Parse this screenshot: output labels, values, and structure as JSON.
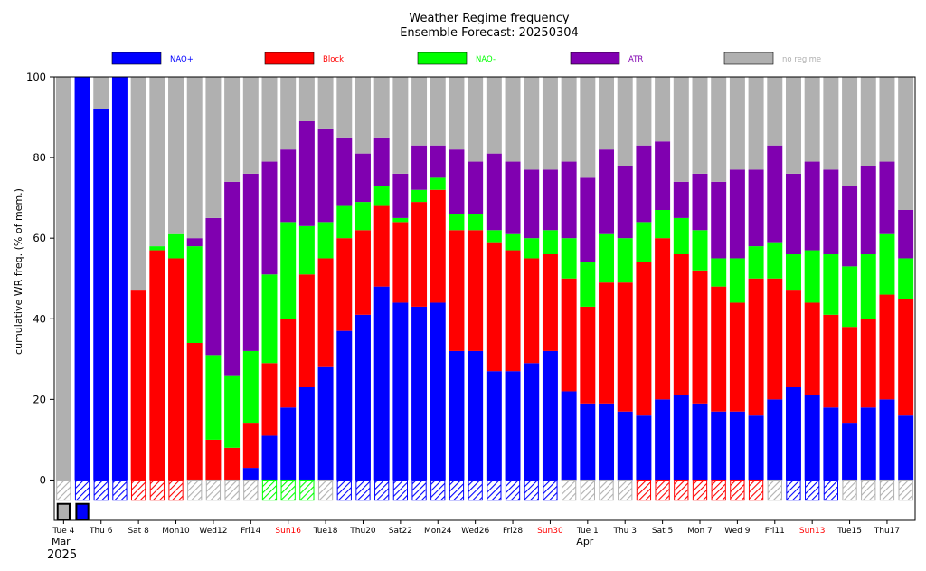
{
  "chart_data": {
    "type": "bar",
    "stacked": true,
    "title": "Weather Regime frequency",
    "subtitle": "Ensemble Forecast: 20250304",
    "ylabel": "cumulative WR freq. (% of mem.)",
    "xlabel": "",
    "ylim": [
      -10,
      100
    ],
    "yticks": [
      0,
      20,
      40,
      60,
      80,
      100
    ],
    "legend": [
      {
        "name": "NAO+",
        "color": "#0000ff",
        "text_color": "#0000ff"
      },
      {
        "name": "Block",
        "color": "#ff0000",
        "text_color": "#ff0000"
      },
      {
        "name": "NAO-",
        "color": "#00ff00",
        "text_color": "#00ff00"
      },
      {
        "name": "ATR",
        "color": "#8000b0",
        "text_color": "#8000b0"
      },
      {
        "name": "no regime",
        "color": "#b0b0b0",
        "text_color": "#b0b0b0"
      }
    ],
    "x_tick_labels": [
      {
        "index": 0,
        "label": "Tue 4",
        "color": "#000000"
      },
      {
        "index": 2,
        "label": "Thu 6",
        "color": "#000000"
      },
      {
        "index": 4,
        "label": "Sat 8",
        "color": "#000000"
      },
      {
        "index": 6,
        "label": "Mon10",
        "color": "#000000"
      },
      {
        "index": 8,
        "label": "Wed12",
        "color": "#000000"
      },
      {
        "index": 10,
        "label": "Fri14",
        "color": "#000000"
      },
      {
        "index": 12,
        "label": "Sun16",
        "color": "#ff0000"
      },
      {
        "index": 14,
        "label": "Tue18",
        "color": "#000000"
      },
      {
        "index": 16,
        "label": "Thu20",
        "color": "#000000"
      },
      {
        "index": 18,
        "label": "Sat22",
        "color": "#000000"
      },
      {
        "index": 20,
        "label": "Mon24",
        "color": "#000000"
      },
      {
        "index": 22,
        "label": "Wed26",
        "color": "#000000"
      },
      {
        "index": 24,
        "label": "Fri28",
        "color": "#000000"
      },
      {
        "index": 26,
        "label": "Sun30",
        "color": "#ff0000"
      },
      {
        "index": 28,
        "label": "Tue 1",
        "color": "#000000"
      },
      {
        "index": 30,
        "label": "Thu 3",
        "color": "#000000"
      },
      {
        "index": 32,
        "label": "Sat 5",
        "color": "#000000"
      },
      {
        "index": 34,
        "label": "Mon 7",
        "color": "#000000"
      },
      {
        "index": 36,
        "label": "Wed 9",
        "color": "#000000"
      },
      {
        "index": 38,
        "label": "Fri11",
        "color": "#000000"
      },
      {
        "index": 40,
        "label": "Sun13",
        "color": "#ff0000"
      },
      {
        "index": 42,
        "label": "Tue15",
        "color": "#000000"
      },
      {
        "index": 44,
        "label": "Thu17",
        "color": "#000000"
      }
    ],
    "month_labels": [
      {
        "index": 0,
        "label": "Mar"
      },
      {
        "index": 28,
        "label": "Apr"
      }
    ],
    "year_label": "2025",
    "bar_width_fraction": 0.82,
    "series": [
      {
        "name": "NAO+",
        "color": "#0000ff",
        "values": [
          0,
          100,
          92,
          100,
          0,
          0,
          0,
          0,
          0,
          0,
          3,
          11,
          18,
          23,
          28,
          37,
          41,
          48,
          44,
          43,
          44,
          32,
          32,
          27,
          27,
          29,
          32,
          22,
          19,
          19,
          17,
          16,
          20,
          21,
          19,
          17,
          17,
          16,
          20,
          23,
          21,
          18,
          14,
          18,
          20,
          16
        ]
      },
      {
        "name": "Block",
        "color": "#ff0000",
        "values": [
          0,
          0,
          0,
          0,
          47,
          57,
          55,
          34,
          10,
          8,
          11,
          18,
          22,
          28,
          27,
          23,
          21,
          20,
          20,
          26,
          28,
          30,
          30,
          32,
          30,
          26,
          24,
          28,
          24,
          30,
          32,
          38,
          40,
          35,
          33,
          31,
          27,
          34,
          30,
          24,
          23,
          23,
          24,
          22,
          26,
          29
        ]
      },
      {
        "name": "NAO-",
        "color": "#00ff00",
        "values": [
          0,
          0,
          0,
          0,
          0,
          1,
          6,
          24,
          21,
          18,
          18,
          22,
          24,
          12,
          9,
          8,
          7,
          5,
          1,
          3,
          3,
          4,
          4,
          3,
          4,
          5,
          6,
          10,
          11,
          12,
          11,
          10,
          7,
          9,
          10,
          7,
          11,
          8,
          9,
          9,
          13,
          15,
          15,
          16,
          15,
          10
        ]
      },
      {
        "name": "ATR",
        "color": "#8000b0",
        "values": [
          0,
          0,
          0,
          0,
          0,
          0,
          0,
          2,
          34,
          48,
          44,
          28,
          18,
          26,
          23,
          17,
          12,
          12,
          11,
          11,
          8,
          16,
          13,
          19,
          18,
          17,
          15,
          19,
          21,
          21,
          18,
          19,
          17,
          9,
          14,
          19,
          22,
          19,
          24,
          20,
          22,
          21,
          20,
          22,
          18,
          12
        ]
      },
      {
        "name": "no regime",
        "color": "#b0b0b0",
        "values": [
          100,
          0,
          8,
          0,
          53,
          42,
          39,
          40,
          35,
          26,
          24,
          21,
          18,
          11,
          13,
          15,
          19,
          15,
          24,
          17,
          17,
          18,
          21,
          19,
          21,
          23,
          23,
          21,
          25,
          18,
          22,
          17,
          16,
          26,
          24,
          26,
          23,
          23,
          17,
          24,
          21,
          23,
          27,
          22,
          21,
          33
        ]
      }
    ],
    "dominant_regime_row": [
      "no regime",
      "NAO+",
      "NAO+",
      "NAO+",
      "Block",
      "Block",
      "Block",
      "no regime",
      "no regime",
      "no regime",
      "no regime",
      "NAO-",
      "NAO-",
      "NAO-",
      "no regime",
      "NAO+",
      "NAO+",
      "NAO+",
      "NAO+",
      "NAO+",
      "NAO+",
      "NAO+",
      "NAO+",
      "NAO+",
      "NAO+",
      "NAO+",
      "NAO+",
      "no regime",
      "no regime",
      "no regime",
      "no regime",
      "Block",
      "Block",
      "Block",
      "Block",
      "Block",
      "Block",
      "Block",
      "no regime",
      "NAO+",
      "NAO+",
      "NAO+",
      "no regime",
      "no regime",
      "no regime",
      "no regime"
    ],
    "analysis_row": [
      "no regime",
      "NAO+"
    ]
  }
}
